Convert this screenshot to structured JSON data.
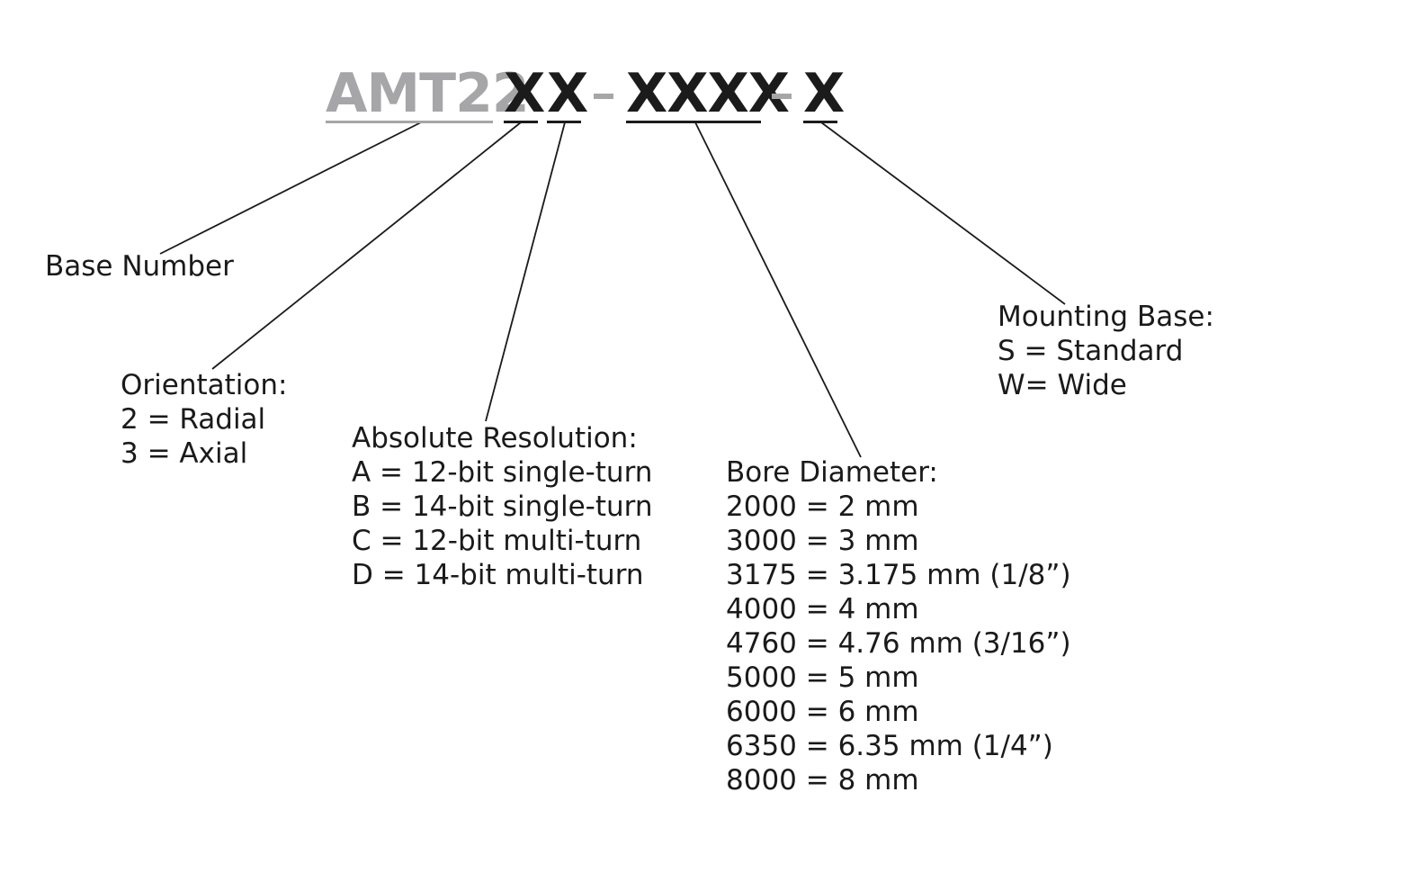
{
  "part_number": {
    "base": "AMT22",
    "orientation": "X",
    "resolution": "X",
    "separator_1": "-",
    "bore": "XXXX",
    "separator_2": "-",
    "mounting": "X"
  },
  "base_number": {
    "title": "Base Number"
  },
  "orientation": {
    "title": "Orientation:",
    "options": [
      "2 = Radial",
      "3 = Axial"
    ]
  },
  "absolute_resolution": {
    "title": "Absolute Resolution:",
    "options": [
      "A = 12-bit single-turn",
      "B = 14-bit single-turn",
      "C = 12-bit multi-turn",
      "D = 14-bit multi-turn"
    ]
  },
  "bore_diameter": {
    "title": "Bore Diameter:",
    "options": [
      "2000 = 2 mm",
      "3000 = 3 mm",
      "3175 = 3.175 mm (1/8”)",
      "4000 = 4 mm",
      "4760 = 4.76 mm (3/16”)",
      "5000 = 5 mm",
      "6000 = 6 mm",
      "6350 = 6.35 mm (1/4”)",
      "8000 = 8 mm"
    ]
  },
  "mounting_base": {
    "title": "Mounting Base:",
    "options": [
      "S = Standard",
      "W= Wide"
    ]
  },
  "colors": {
    "base_text": "#a6a6a8",
    "variable_text": "#1b1b1b",
    "line": "#1a1a1a"
  }
}
